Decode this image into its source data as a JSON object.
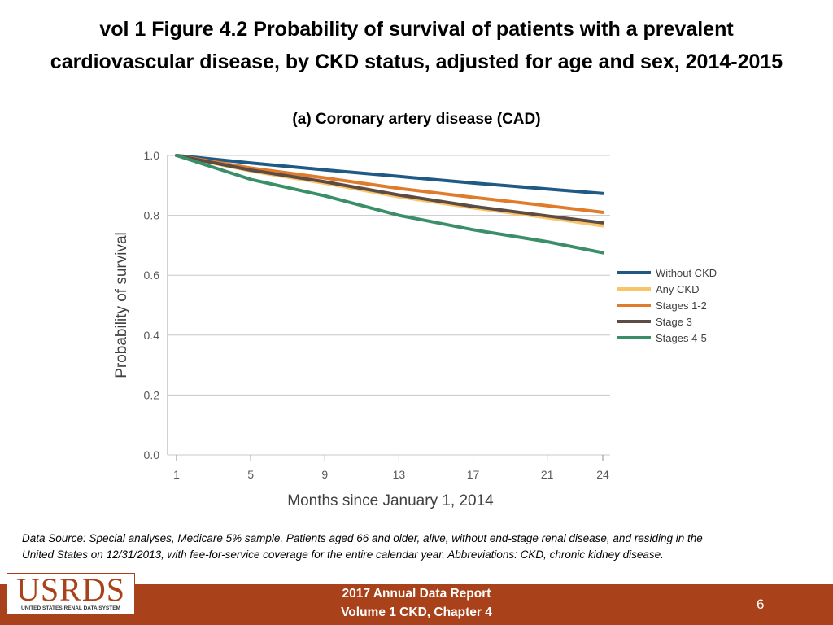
{
  "slide": {
    "title_line1": "vol 1 Figure 4.2 Probability of survival of patients with a prevalent",
    "title_line2": "cardiovascular disease, by CKD status, adjusted for age and sex, 2014-2015",
    "data_source_line1": "Data Source: Special analyses, Medicare 5% sample. Patients aged 66 and older, alive, without end-stage renal disease, and residing in the",
    "data_source_line2": "United States on 12/31/2013, with fee-for-service coverage for the entire calendar year. Abbreviations: CKD, chronic kidney disease.",
    "footer_line1": "2017 Annual Data Report",
    "footer_line2": "Volume 1 CKD, Chapter 4",
    "page_number": "6",
    "logo_text": "USRDS",
    "logo_subtext": "UNITED STATES RENAL DATA SYSTEM"
  },
  "chart_data": {
    "type": "line",
    "title": "(a) Coronary artery disease (CAD)",
    "xlabel": "Months since January 1, 2014",
    "ylabel": "Probability of survival",
    "xlim": [
      1,
      24
    ],
    "ylim": [
      0,
      1.0
    ],
    "grid": true,
    "legend_position": "right",
    "x_ticks": [
      1,
      5,
      9,
      13,
      17,
      21,
      24
    ],
    "y_ticks": [
      0.0,
      0.2,
      0.4,
      0.6,
      0.8,
      1.0
    ],
    "y_tick_labels": [
      "0.0",
      "0.2",
      "0.4",
      "0.6",
      "0.8",
      "1.0"
    ],
    "x": [
      1,
      5,
      9,
      13,
      17,
      21,
      24
    ],
    "series": [
      {
        "name": "Without CKD",
        "color": "#1f5a85",
        "values": [
          1.0,
          0.975,
          0.952,
          0.93,
          0.908,
          0.888,
          0.873
        ]
      },
      {
        "name": "Any CKD",
        "color": "#f8c56b",
        "values": [
          1.0,
          0.948,
          0.907,
          0.862,
          0.825,
          0.792,
          0.765
        ]
      },
      {
        "name": "Stages 1-2",
        "color": "#e07b2c",
        "values": [
          1.0,
          0.958,
          0.925,
          0.89,
          0.86,
          0.832,
          0.81
        ]
      },
      {
        "name": "Stage 3",
        "color": "#5c4c44",
        "values": [
          1.0,
          0.951,
          0.912,
          0.868,
          0.83,
          0.798,
          0.775
        ]
      },
      {
        "name": "Stages 4-5",
        "color": "#3a8f68",
        "values": [
          1.0,
          0.92,
          0.865,
          0.8,
          0.752,
          0.712,
          0.675
        ]
      }
    ]
  }
}
